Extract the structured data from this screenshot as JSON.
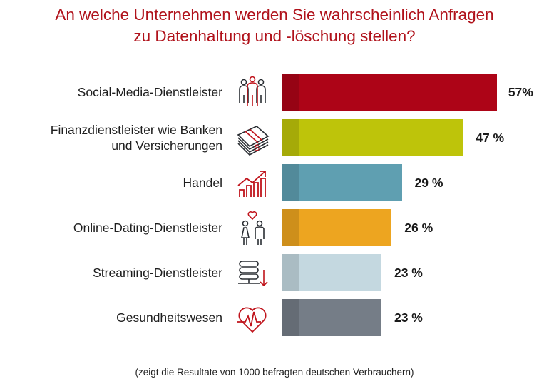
{
  "chart_data": {
    "type": "bar",
    "orientation": "horizontal",
    "title": "An welche Unternehmen werden Sie wahrscheinlich Anfragen zu Datenhaltung und -löschung stellen?",
    "title_lines": [
      "An welche Unternehmen werden Sie wahrscheinlich Anfragen",
      "zu Datenhaltung und -löschung stellen?"
    ],
    "categories": [
      [
        "Social-Media-Dienstleister"
      ],
      [
        "Finanzdienstleister wie Banken",
        "und Versicherungen"
      ],
      [
        "Handel"
      ],
      [
        "Online-Dating-Dienstleister"
      ],
      [
        "Streaming-Dienstleister"
      ],
      [
        "Gesundheitswesen"
      ]
    ],
    "values": [
      57,
      47,
      29,
      26,
      23,
      23
    ],
    "value_labels": [
      "57%",
      "47 %",
      "29 %",
      "26 %",
      "23 %",
      "23 %"
    ],
    "colors": [
      "#ad0417",
      "#bec40a",
      "#5f9fb1",
      "#eda520",
      "#c4d8e0",
      "#757d87"
    ],
    "icons": [
      "people-group-icon",
      "money-stack-icon",
      "growth-chart-icon",
      "couple-heart-icon",
      "server-download-icon",
      "heartbeat-icon"
    ],
    "xlabel": "",
    "ylabel": "",
    "grid": false,
    "footnote": "(zeigt die Resultate von 1000 befragten deutschen Verbrauchern)"
  }
}
